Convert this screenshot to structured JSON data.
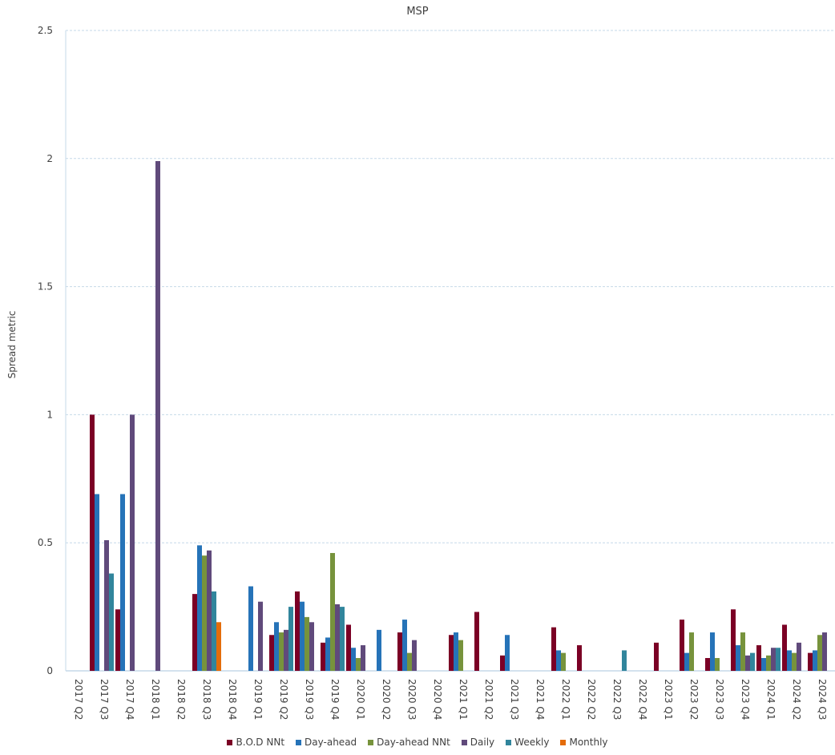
{
  "chart_data": {
    "type": "bar",
    "title": "MSP",
    "xlabel": "",
    "ylabel": "Spread metric",
    "ylim": [
      0,
      2.5
    ],
    "yticks": [
      0,
      0.5,
      1,
      1.5,
      2,
      2.5
    ],
    "ytick_labels": [
      "0",
      "0.5",
      "1",
      "1.5",
      "2",
      "2.5"
    ],
    "grid": true,
    "legend_position": "bottom",
    "categories": [
      "2017 Q2",
      "2017 Q3",
      "2017 Q4",
      "2018 Q1",
      "2018 Q2",
      "2018 Q3",
      "2018 Q4",
      "2019 Q1",
      "2019 Q2",
      "2019 Q3",
      "2019 Q4",
      "2020 Q1",
      "2020 Q2",
      "2020 Q3",
      "2020 Q4",
      "2021 Q1",
      "2021 Q2",
      "2021 Q3",
      "2021 Q4",
      "2022 Q1",
      "2022 Q2",
      "2022 Q3",
      "2022 Q4",
      "2023 Q1",
      "2023 Q2",
      "2023 Q3",
      "2023 Q4",
      "2024 Q1",
      "2024 Q2",
      "2024 Q3"
    ],
    "series": [
      {
        "name": "B.O.D NNt",
        "color": "#7b0025",
        "values": [
          0,
          1.0,
          0.24,
          0,
          0,
          0.3,
          0,
          0,
          0.14,
          0.31,
          0.11,
          0.18,
          0,
          0.15,
          0,
          0.14,
          0.23,
          0.06,
          0,
          0.17,
          0.1,
          0,
          0,
          0.11,
          0.2,
          0.05,
          0.24,
          0.1,
          0.18,
          0.07
        ]
      },
      {
        "name": "Day-ahead",
        "color": "#2673b8",
        "values": [
          0,
          0.69,
          0.69,
          0,
          0,
          0.49,
          0,
          0.33,
          0.19,
          0.27,
          0.13,
          0.09,
          0.16,
          0.2,
          0,
          0.15,
          0,
          0.14,
          0,
          0.08,
          0,
          0,
          0,
          0,
          0.07,
          0.15,
          0.1,
          0.05,
          0.08,
          0.08
        ]
      },
      {
        "name": "Day-ahead NNt",
        "color": "#77933c",
        "values": [
          0,
          0,
          0,
          0,
          0,
          0.45,
          0,
          0,
          0.15,
          0.21,
          0.46,
          0.05,
          0,
          0.07,
          0,
          0.12,
          0,
          0,
          0,
          0.07,
          0,
          0,
          0,
          0,
          0.15,
          0.05,
          0.15,
          0.06,
          0.07,
          0.14
        ]
      },
      {
        "name": "Daily",
        "color": "#604a7b",
        "values": [
          0,
          0.51,
          1.0,
          1.99,
          0,
          0.47,
          0,
          0.27,
          0.16,
          0.19,
          0.26,
          0.1,
          0,
          0.12,
          0,
          0,
          0,
          0,
          0,
          0,
          0,
          0,
          0,
          0,
          0,
          0,
          0.06,
          0.09,
          0.11,
          0.15
        ]
      },
      {
        "name": "Weekly",
        "color": "#31859c",
        "values": [
          0,
          0.38,
          0,
          0,
          0,
          0.31,
          0,
          0,
          0.25,
          0,
          0.25,
          0,
          0,
          0,
          0,
          0,
          0,
          0,
          0,
          0,
          0,
          0.08,
          0,
          0,
          0,
          0,
          0.07,
          0.09,
          0,
          0
        ]
      },
      {
        "name": "Monthly",
        "color": "#e46c0a",
        "values": [
          0,
          0,
          0,
          0,
          0,
          0.19,
          0,
          0,
          0,
          0,
          0,
          0,
          0,
          0,
          0,
          0,
          0,
          0,
          0,
          0,
          0,
          0,
          0,
          0,
          0,
          0,
          0,
          0,
          0,
          0
        ]
      }
    ]
  },
  "legend": {
    "items": [
      {
        "label": "B.O.D NNt",
        "color": "#7b0025"
      },
      {
        "label": "Day-ahead",
        "color": "#2673b8"
      },
      {
        "label": "Day-ahead NNt",
        "color": "#77933c"
      },
      {
        "label": "Daily",
        "color": "#604a7b"
      },
      {
        "label": "Weekly",
        "color": "#31859c"
      },
      {
        "label": "Monthly",
        "color": "#e46c0a"
      }
    ]
  },
  "style": {
    "gridline_color": "#c6d9e8",
    "axis_color": "#c6d9e8"
  }
}
